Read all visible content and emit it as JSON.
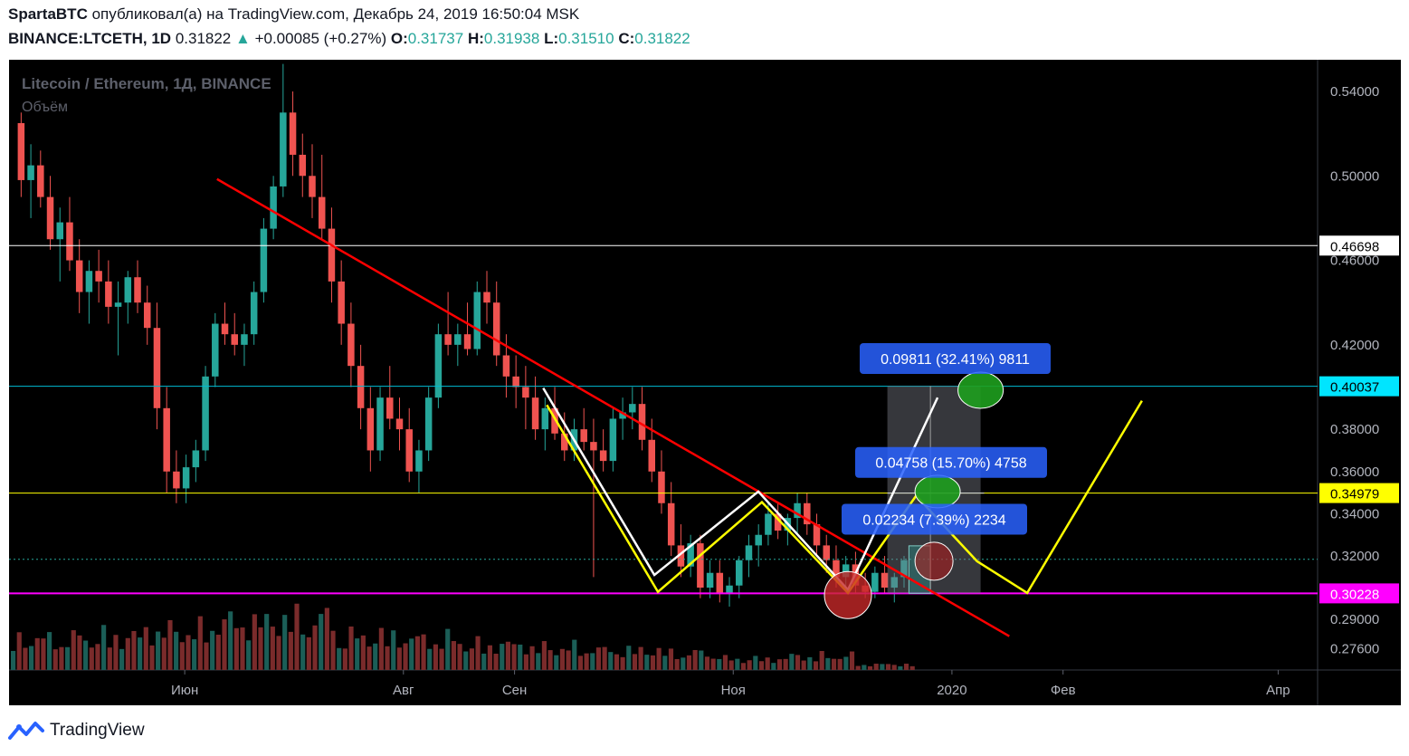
{
  "header": {
    "author": "SpartaBTC",
    "published_text": "опубликовал(а) на TradingView.com, Декабрь 24, 2019 16:50:04 MSK",
    "symbol": "BINANCE:LTCETH, 1D",
    "last": "0.31822",
    "change_arrow": "▲",
    "change": "+0.00085 (+0.27%)",
    "o_label": "O:",
    "o_value": "0.31737",
    "h_label": "H:",
    "h_value": "0.31938",
    "l_label": "L:",
    "l_value": "0.31510",
    "c_label": "C:",
    "c_value": "0.31822"
  },
  "footer": {
    "brand": "TradingView"
  },
  "colors": {
    "background": "#000000",
    "up": "#26a69a",
    "down": "#ef5350",
    "trendline": "#ff0000",
    "pattern_white": "#ffffff",
    "pattern_yellow": "#ffff00",
    "support": "#ff00ff",
    "level_white": "#ffffff",
    "level_cyan": "#00bcd4",
    "level_yellow": "#ffff00",
    "label_blue": "#2962ff",
    "target_green": "#1e9e1e",
    "stop_red": "#c62828"
  },
  "chart_data": {
    "type": "candlestick",
    "title": "Litecoin / Ethereum, 1Д, BINANCE",
    "subtitle": "Объём",
    "xlabel": "",
    "ylabel": "",
    "x_ticks": [
      "Июн",
      "Авг",
      "Сен",
      "Ноя",
      "2020",
      "Фев",
      "Апр"
    ],
    "x_tick_dates": [
      "2019-06-01",
      "2019-08-01",
      "2019-09-01",
      "2019-11-01",
      "2020-01-01",
      "2020-02-01",
      "2020-04-01"
    ],
    "y_ticks": [
      "0.54000",
      "0.50000",
      "0.46000",
      "0.42000",
      "0.38000",
      "0.36000",
      "0.34000",
      "0.32000",
      "0.29000",
      "0.27600"
    ],
    "y_tick_values": [
      0.54,
      0.5,
      0.46,
      0.42,
      0.38,
      0.36,
      0.34,
      0.32,
      0.29,
      0.276
    ],
    "ylim": [
      0.266,
      0.555
    ],
    "xlim": [
      "2019-04-13",
      "2020-04-12"
    ],
    "grid": false,
    "horizontal_levels": [
      {
        "value": 0.46698,
        "label": "0.46698",
        "color": "white"
      },
      {
        "value": 0.40037,
        "label": "0.40037",
        "color": "cyan"
      },
      {
        "value": 0.34979,
        "label": "0.34979",
        "color": "yellow"
      },
      {
        "value": 0.30228,
        "label": "0.30228",
        "color": "magenta"
      }
    ],
    "annotations": [
      {
        "text": "0.09811 (32.41%) 9811"
      },
      {
        "text": "0.04758 (15.70%) 4758"
      },
      {
        "text": "0.02234 (7.39%) 2234"
      }
    ],
    "trendline": {
      "from": [
        "2019-06-10",
        0.4985
      ],
      "to": [
        "2020-01-17",
        0.282
      ]
    },
    "pattern_white": [
      [
        "2019-09-09",
        0.3995
      ],
      [
        "2019-10-10",
        0.311
      ],
      [
        "2019-11-08",
        0.3505
      ],
      [
        "2019-12-03",
        0.304
      ],
      [
        "2019-12-28",
        0.395
      ]
    ],
    "pattern_yellow": [
      [
        "2019-09-10",
        0.3915
      ],
      [
        "2019-10-11",
        0.303
      ],
      [
        "2019-11-09",
        0.3455
      ],
      [
        "2019-12-03",
        0.3025
      ],
      [
        "2019-12-22",
        0.3485
      ],
      [
        "2020-01-08",
        0.3175
      ],
      [
        "2020-01-22",
        0.3025
      ],
      [
        "2020-02-23",
        0.3935
      ]
    ],
    "volume_heights_pct": [
      0.55,
      0.6,
      0.7,
      0.85,
      0.9,
      0.6,
      0.55,
      0.45,
      0.4,
      0.35,
      0.3,
      0.2,
      0.25,
      0.1
    ],
    "candles": [
      [
        0.525,
        0.53,
        0.49,
        0.498
      ],
      [
        0.498,
        0.515,
        0.48,
        0.505
      ],
      [
        0.505,
        0.512,
        0.485,
        0.49
      ],
      [
        0.49,
        0.5,
        0.465,
        0.47
      ],
      [
        0.47,
        0.485,
        0.45,
        0.478
      ],
      [
        0.478,
        0.49,
        0.455,
        0.46
      ],
      [
        0.46,
        0.47,
        0.435,
        0.445
      ],
      [
        0.445,
        0.46,
        0.43,
        0.455
      ],
      [
        0.455,
        0.465,
        0.44,
        0.45
      ],
      [
        0.45,
        0.46,
        0.43,
        0.438
      ],
      [
        0.438,
        0.45,
        0.415,
        0.44
      ],
      [
        0.44,
        0.455,
        0.43,
        0.452
      ],
      [
        0.452,
        0.46,
        0.435,
        0.44
      ],
      [
        0.44,
        0.448,
        0.42,
        0.428
      ],
      [
        0.428,
        0.44,
        0.38,
        0.39
      ],
      [
        0.39,
        0.4,
        0.35,
        0.36
      ],
      [
        0.36,
        0.37,
        0.345,
        0.352
      ],
      [
        0.352,
        0.368,
        0.345,
        0.362
      ],
      [
        0.362,
        0.375,
        0.355,
        0.37
      ],
      [
        0.37,
        0.41,
        0.365,
        0.405
      ],
      [
        0.405,
        0.435,
        0.4,
        0.43
      ],
      [
        0.43,
        0.44,
        0.42,
        0.425
      ],
      [
        0.425,
        0.435,
        0.415,
        0.42
      ],
      [
        0.42,
        0.43,
        0.41,
        0.425
      ],
      [
        0.425,
        0.45,
        0.42,
        0.445
      ],
      [
        0.445,
        0.48,
        0.44,
        0.475
      ],
      [
        0.475,
        0.5,
        0.47,
        0.495
      ],
      [
        0.495,
        0.553,
        0.49,
        0.53
      ],
      [
        0.53,
        0.54,
        0.5,
        0.51
      ],
      [
        0.51,
        0.52,
        0.49,
        0.5
      ],
      [
        0.5,
        0.515,
        0.48,
        0.49
      ],
      [
        0.49,
        0.51,
        0.47,
        0.475
      ],
      [
        0.475,
        0.485,
        0.44,
        0.45
      ],
      [
        0.45,
        0.46,
        0.42,
        0.43
      ],
      [
        0.43,
        0.44,
        0.4,
        0.41
      ],
      [
        0.41,
        0.42,
        0.38,
        0.39
      ],
      [
        0.39,
        0.4,
        0.36,
        0.37
      ],
      [
        0.37,
        0.4,
        0.365,
        0.395
      ],
      [
        0.395,
        0.41,
        0.38,
        0.385
      ],
      [
        0.385,
        0.395,
        0.37,
        0.38
      ],
      [
        0.38,
        0.39,
        0.355,
        0.36
      ],
      [
        0.36,
        0.375,
        0.35,
        0.37
      ],
      [
        0.37,
        0.4,
        0.365,
        0.395
      ],
      [
        0.395,
        0.43,
        0.39,
        0.425
      ],
      [
        0.425,
        0.445,
        0.415,
        0.42
      ],
      [
        0.42,
        0.43,
        0.41,
        0.425
      ],
      [
        0.425,
        0.44,
        0.415,
        0.418
      ],
      [
        0.418,
        0.45,
        0.415,
        0.445
      ],
      [
        0.445,
        0.455,
        0.43,
        0.44
      ],
      [
        0.44,
        0.45,
        0.41,
        0.415
      ],
      [
        0.415,
        0.425,
        0.395,
        0.405
      ],
      [
        0.405,
        0.415,
        0.39,
        0.4
      ],
      [
        0.4,
        0.41,
        0.38,
        0.395
      ],
      [
        0.395,
        0.405,
        0.375,
        0.38
      ],
      [
        0.38,
        0.395,
        0.37,
        0.39
      ],
      [
        0.39,
        0.4,
        0.375,
        0.378
      ],
      [
        0.378,
        0.388,
        0.365,
        0.37
      ],
      [
        0.37,
        0.385,
        0.365,
        0.38
      ],
      [
        0.38,
        0.39,
        0.37,
        0.374
      ],
      [
        0.374,
        0.385,
        0.31,
        0.37
      ],
      [
        0.37,
        0.38,
        0.36,
        0.365
      ],
      [
        0.365,
        0.39,
        0.36,
        0.385
      ],
      [
        0.385,
        0.395,
        0.375,
        0.388
      ],
      [
        0.388,
        0.4,
        0.38,
        0.392
      ],
      [
        0.392,
        0.4,
        0.37,
        0.375
      ],
      [
        0.375,
        0.385,
        0.355,
        0.36
      ],
      [
        0.36,
        0.37,
        0.34,
        0.345
      ],
      [
        0.345,
        0.355,
        0.32,
        0.325
      ],
      [
        0.325,
        0.335,
        0.31,
        0.315
      ],
      [
        0.315,
        0.33,
        0.31,
        0.326
      ],
      [
        0.326,
        0.33,
        0.3,
        0.305
      ],
      [
        0.305,
        0.318,
        0.3,
        0.312
      ],
      [
        0.312,
        0.318,
        0.298,
        0.302
      ],
      [
        0.302,
        0.31,
        0.296,
        0.306
      ],
      [
        0.306,
        0.32,
        0.3,
        0.318
      ],
      [
        0.318,
        0.33,
        0.31,
        0.325
      ],
      [
        0.325,
        0.335,
        0.315,
        0.33
      ],
      [
        0.33,
        0.345,
        0.325,
        0.34
      ],
      [
        0.34,
        0.345,
        0.328,
        0.332
      ],
      [
        0.332,
        0.34,
        0.325,
        0.338
      ],
      [
        0.338,
        0.35,
        0.33,
        0.345
      ],
      [
        0.345,
        0.35,
        0.33,
        0.335
      ],
      [
        0.335,
        0.34,
        0.32,
        0.325
      ],
      [
        0.325,
        0.33,
        0.312,
        0.318
      ],
      [
        0.318,
        0.325,
        0.305,
        0.31
      ],
      [
        0.31,
        0.32,
        0.305,
        0.316
      ],
      [
        0.316,
        0.322,
        0.302,
        0.306
      ],
      [
        0.306,
        0.312,
        0.3,
        0.303
      ],
      [
        0.303,
        0.315,
        0.3,
        0.312
      ],
      [
        0.312,
        0.32,
        0.302,
        0.305
      ],
      [
        0.305,
        0.312,
        0.298,
        0.31
      ],
      [
        0.31,
        0.32,
        0.305,
        0.318
      ]
    ]
  }
}
